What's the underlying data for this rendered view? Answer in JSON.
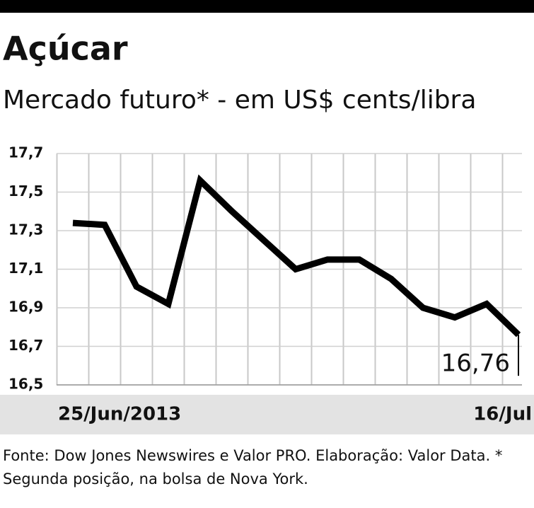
{
  "chart_data": {
    "type": "line",
    "title": "Açúcar",
    "subtitle": "Mercado futuro* - em US$ cents/libra",
    "categories": [
      "25/Jun/2013",
      null,
      null,
      null,
      null,
      null,
      null,
      null,
      null,
      null,
      null,
      null,
      null,
      null,
      "16/Jul"
    ],
    "series": [
      {
        "color": "#000000",
        "values": [
          17.34,
          17.33,
          17.01,
          16.92,
          17.56,
          17.4,
          17.25,
          17.1,
          17.15,
          17.15,
          17.05,
          16.9,
          16.85,
          16.92,
          16.76
        ],
        "value_labels": [
          null,
          null,
          null,
          null,
          null,
          null,
          null,
          null,
          null,
          null,
          null,
          null,
          null,
          null,
          "16,76"
        ]
      }
    ],
    "ylim": [
      16.5,
      17.7
    ],
    "yticks": [
      {
        "value": 16.5,
        "label": "16,5"
      },
      {
        "value": 16.7,
        "label": "16,7"
      },
      {
        "value": 16.9,
        "label": "16,9"
      },
      {
        "value": 17.1,
        "label": "17,1"
      },
      {
        "value": 17.3,
        "label": "17,3"
      },
      {
        "value": 17.5,
        "label": "17,5"
      },
      {
        "value": 17.7,
        "label": "17,7"
      }
    ],
    "grid": true,
    "source": "Fonte: Dow Jones Newswires e Valor PRO. Elaboração: Valor Data. * Segunda posição, na bolsa de Nova York."
  }
}
